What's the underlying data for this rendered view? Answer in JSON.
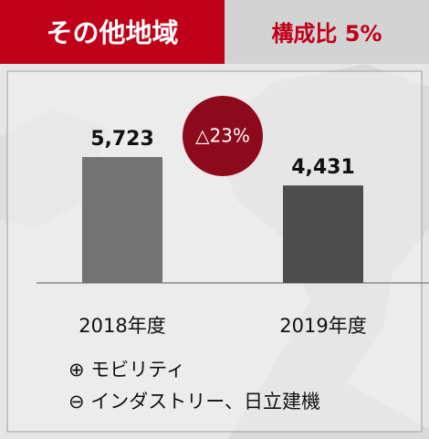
{
  "chart_data": {
    "type": "bar",
    "title": "その他地域",
    "subtitle": "構成比 5%",
    "categories": [
      "2018年度",
      "2019年度"
    ],
    "values": [
      5723,
      4431
    ],
    "value_labels": [
      "5,723",
      "4,431"
    ],
    "colors": [
      "#737373",
      "#4d4d4d"
    ],
    "badge": "△23%",
    "notes": [
      "⊕ モビリティ",
      "⊖ インダストリー、日立建機"
    ]
  }
}
